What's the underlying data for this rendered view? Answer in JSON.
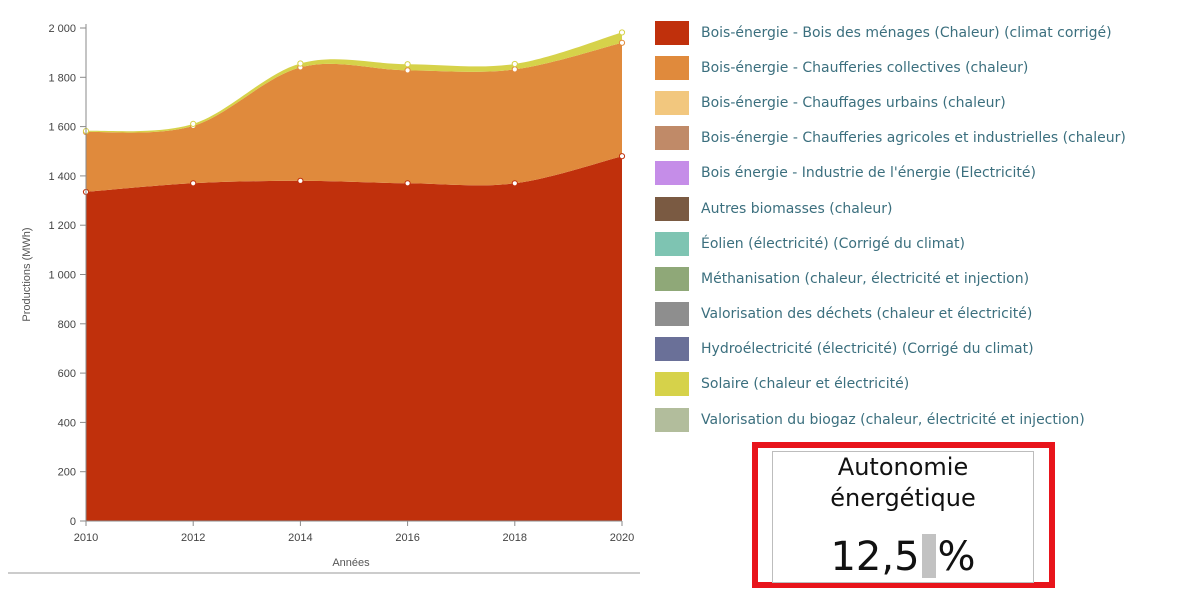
{
  "chart_data": {
    "type": "area",
    "stacked": true,
    "xlabel": "Années",
    "ylabel": "Productions (MWh)",
    "xlim": [
      2010,
      2020
    ],
    "ylim": [
      0,
      2000
    ],
    "x_ticks": [
      "2010",
      "2012",
      "2014",
      "2016",
      "2018",
      "2020"
    ],
    "y_ticks": [
      "0",
      "200",
      "400",
      "600",
      "800",
      "1 000",
      "1 200",
      "1 400",
      "1 600",
      "1 800",
      "2 000"
    ],
    "grid": false,
    "legend_position": "right",
    "x": [
      2010,
      2012,
      2014,
      2016,
      2018,
      2020
    ],
    "series": [
      {
        "name": "Bois-énergie - Bois des ménages (Chaleur) (climat corrigé)",
        "color": "#c0300c",
        "values": [
          1335,
          1370,
          1380,
          1370,
          1370,
          1480
        ]
      },
      {
        "name": "Bois-énergie - Chaufferies collectives (chaleur)",
        "color": "#e08a3c",
        "values": [
          243,
          233,
          460,
          458,
          462,
          460
        ]
      },
      {
        "name": "Bois-énergie - Chauffages urbains (chaleur)",
        "color": "#f2c77e",
        "values": [
          0,
          0,
          0,
          0,
          0,
          0
        ]
      },
      {
        "name": "Bois-énergie - Chaufferies agricoles et industrielles (chaleur)",
        "color": "#c08a68",
        "values": [
          0,
          0,
          0,
          0,
          0,
          0
        ]
      },
      {
        "name": "Bois énergie - Industrie de l'énergie (Electricité)",
        "color": "#c58de8",
        "values": [
          0,
          0,
          0,
          0,
          0,
          0
        ]
      },
      {
        "name": "Autres biomasses (chaleur)",
        "color": "#7a5a42",
        "values": [
          0,
          0,
          0,
          0,
          0,
          0
        ]
      },
      {
        "name": "Éolien (électricité) (Corrigé du climat)",
        "color": "#7ec4b2",
        "values": [
          0,
          0,
          0,
          0,
          0,
          0
        ]
      },
      {
        "name": "Méthanisation (chaleur, électricité et injection)",
        "color": "#8fa878",
        "values": [
          0,
          0,
          0,
          0,
          0,
          0
        ]
      },
      {
        "name": "Valorisation des déchets (chaleur et électricité)",
        "color": "#8e8e8e",
        "values": [
          0,
          0,
          0,
          0,
          0,
          0
        ]
      },
      {
        "name": "Hydroélectricité (électricité) (Corrigé du climat)",
        "color": "#6a7098",
        "values": [
          0,
          0,
          0,
          0,
          0,
          0
        ]
      },
      {
        "name": "Solaire (chaleur et électricité)",
        "color": "#d6d24a",
        "values": [
          4,
          8,
          16,
          25,
          22,
          42
        ]
      },
      {
        "name": "Valorisation du biogaz (chaleur, électricité et injection)",
        "color": "#b2bd9c",
        "values": [
          0,
          0,
          0,
          0,
          0,
          0
        ]
      }
    ]
  },
  "kpi": {
    "title": "Autonomie énergétique",
    "value": "12,5",
    "unit": "%"
  }
}
